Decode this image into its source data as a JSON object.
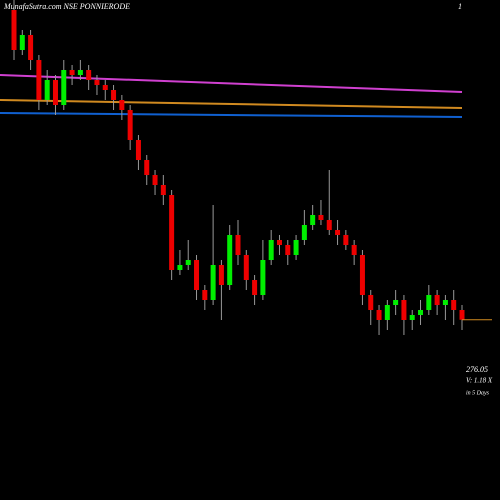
{
  "chart_data": {
    "type": "candlestick",
    "title": "MunafaSutra.com NSE PONNIERODE",
    "corner_label": "1",
    "price_label": "276.05",
    "volume_label": "V: 1.18 X",
    "period_label": "in 5 Days",
    "ylim": [
      240,
      340
    ],
    "up_color": "#00ee00",
    "down_color": "#ee0000",
    "wick_color": "#999999",
    "open": [
      338,
      330,
      333,
      328,
      320,
      324,
      319,
      326,
      325,
      326,
      324,
      323,
      322,
      320,
      318,
      312,
      308,
      305,
      303,
      301,
      286,
      287,
      288,
      282,
      280,
      287,
      283,
      293,
      289,
      284,
      281,
      288,
      292,
      291,
      289,
      292,
      295,
      297,
      296,
      294,
      293,
      291,
      289,
      281,
      278,
      276,
      279,
      280,
      276,
      277,
      278,
      281,
      279,
      280,
      278
    ],
    "high": [
      341,
      334,
      334,
      329,
      326,
      325,
      328,
      327,
      328,
      327,
      325,
      324,
      323,
      321,
      319,
      313,
      309,
      306,
      305,
      302,
      290,
      292,
      289,
      283,
      299,
      288,
      295,
      296,
      290,
      285,
      292,
      294,
      293,
      292,
      293,
      298,
      299,
      300,
      306,
      296,
      294,
      292,
      290,
      282,
      279,
      280,
      282,
      281,
      278,
      280,
      283,
      282,
      281,
      282,
      279
    ],
    "low": [
      328,
      329,
      326,
      318,
      319,
      317,
      318,
      323,
      324,
      322,
      321,
      320,
      318,
      316,
      310,
      306,
      303,
      301,
      299,
      284,
      285,
      286,
      280,
      278,
      279,
      276,
      282,
      287,
      282,
      279,
      280,
      287,
      289,
      287,
      288,
      291,
      294,
      295,
      293,
      291,
      290,
      287,
      279,
      275,
      273,
      274,
      277,
      273,
      274,
      275,
      277,
      277,
      276,
      275,
      274
    ],
    "close": [
      330,
      333,
      328,
      320,
      324,
      319,
      326,
      325,
      326,
      324,
      323,
      322,
      320,
      318,
      312,
      308,
      305,
      303,
      301,
      286,
      287,
      288,
      282,
      280,
      287,
      283,
      293,
      289,
      284,
      281,
      288,
      292,
      291,
      289,
      292,
      295,
      297,
      296,
      294,
      293,
      291,
      289,
      281,
      278,
      276,
      279,
      280,
      276,
      277,
      278,
      281,
      279,
      280,
      278,
      276.05
    ],
    "lines": [
      {
        "color": "#d040d0",
        "values": [
          325,
          321.6
        ]
      },
      {
        "color": "#d08a20",
        "values": [
          320,
          318.4
        ]
      },
      {
        "color": "#1060d0",
        "values": [
          317.4,
          316.6
        ]
      }
    ]
  }
}
